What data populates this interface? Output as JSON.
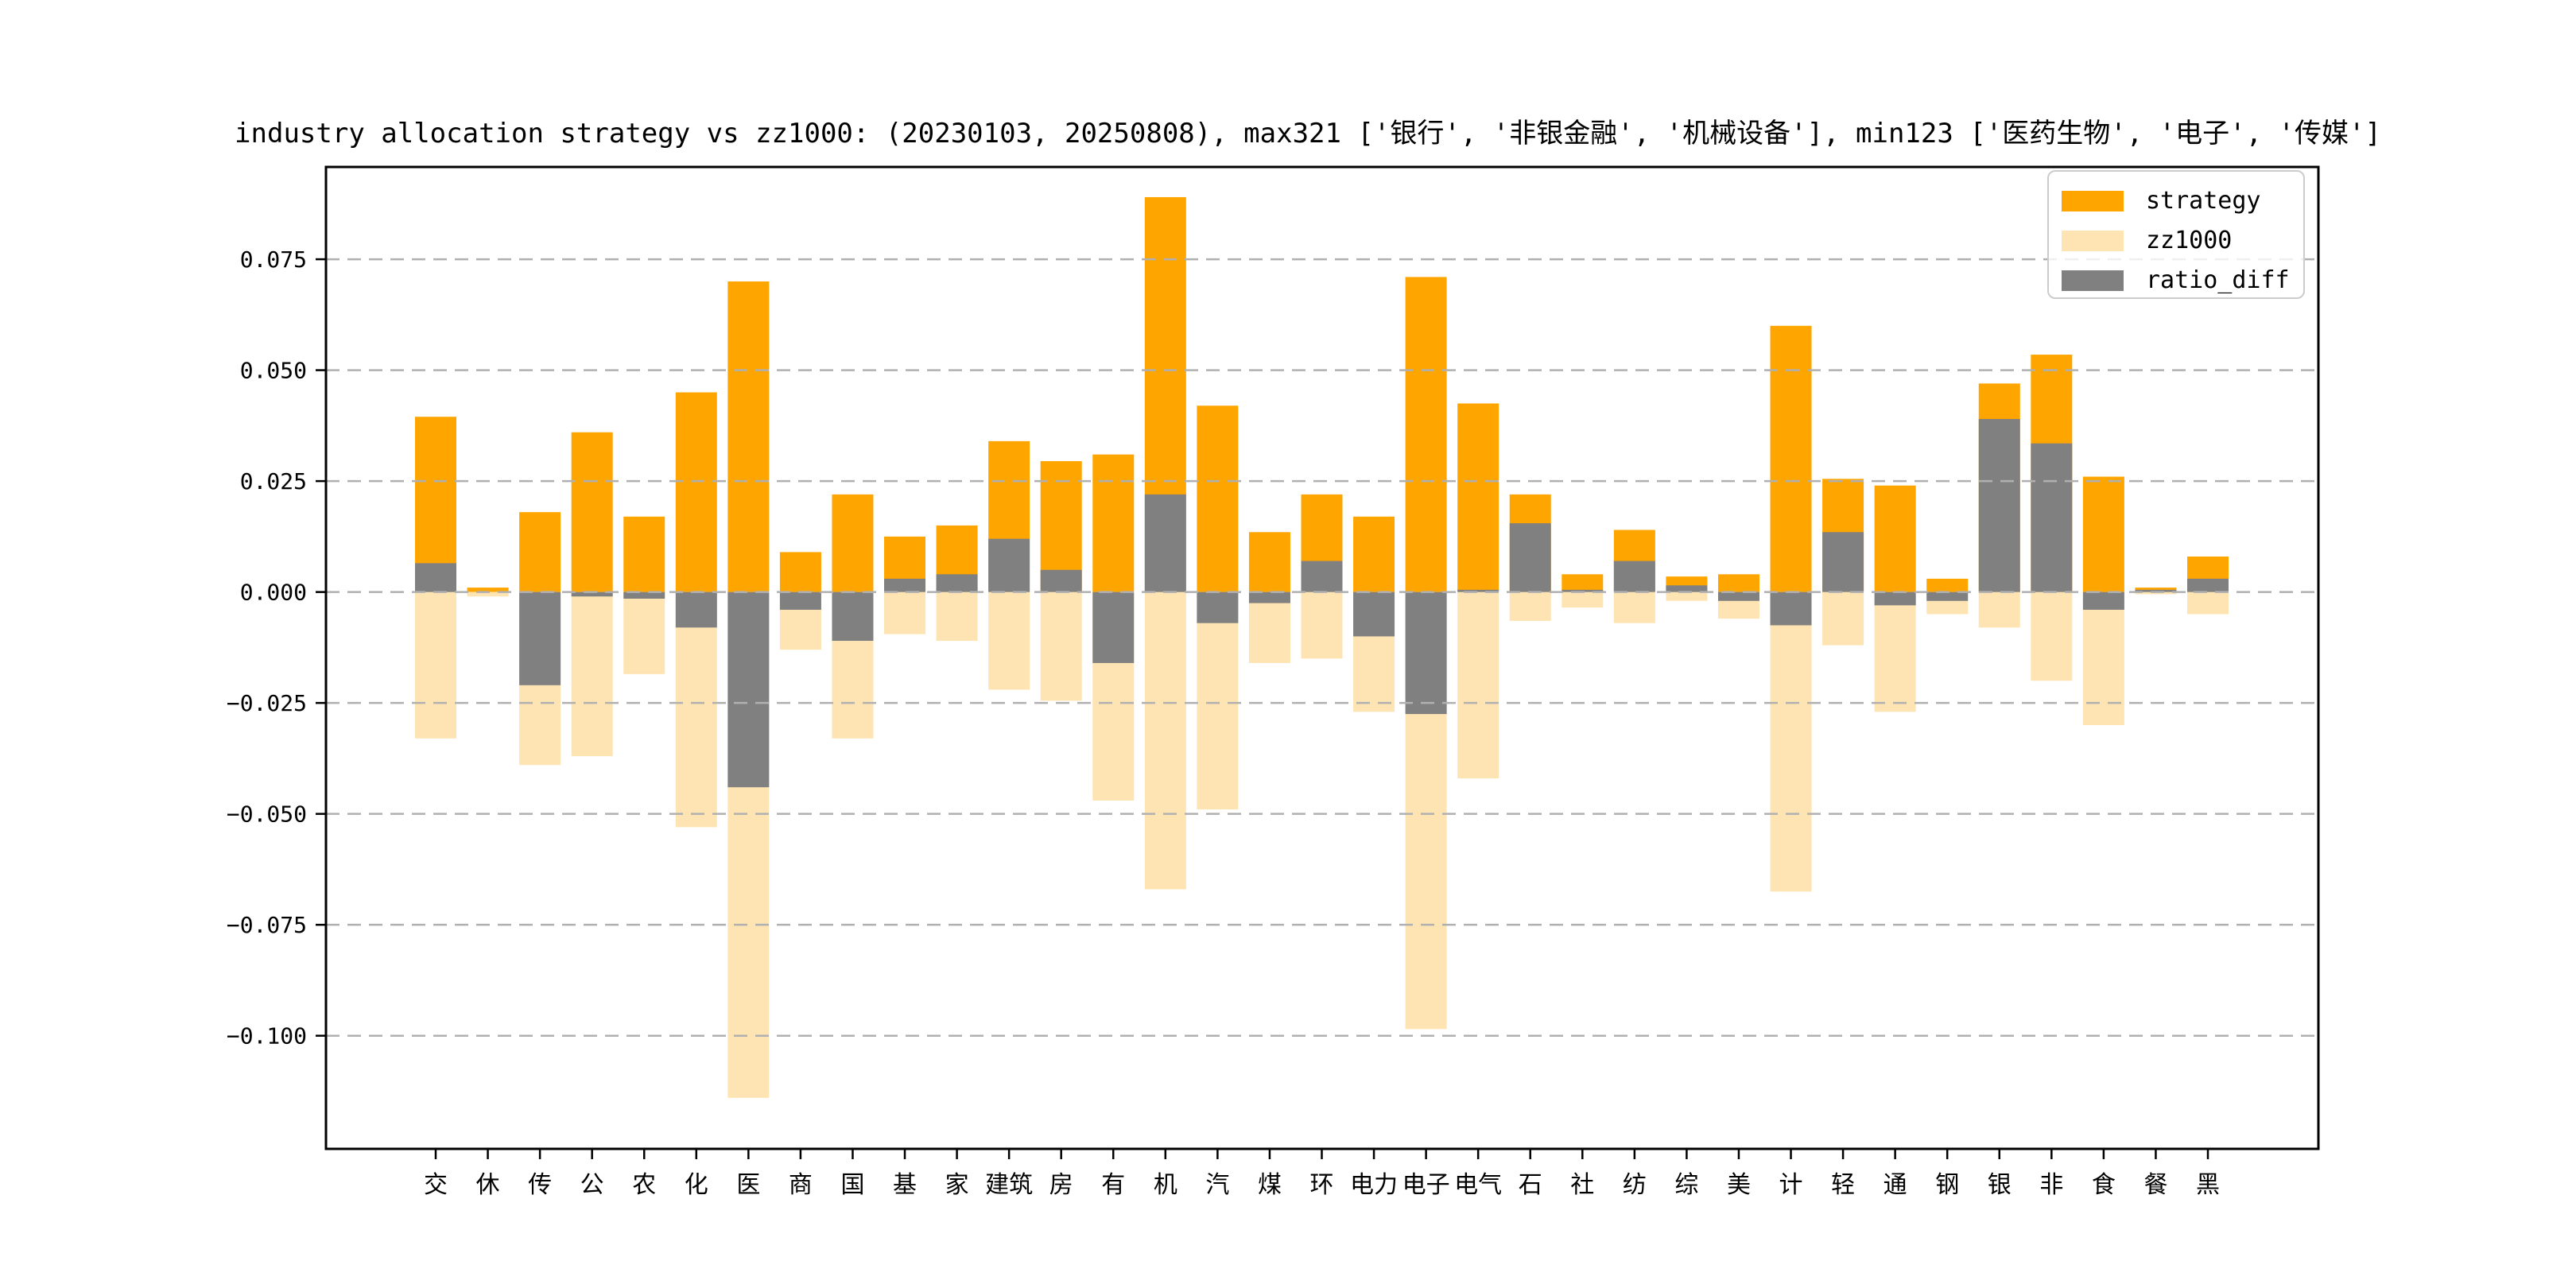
{
  "figure": {
    "background": "#ffffff",
    "plot_background": "#ffffff",
    "spine_color": "#000000",
    "gridline_color": "#b0b0b0"
  },
  "chart_data": {
    "type": "bar",
    "title": "industry allocation strategy vs zz1000: (20230103, 20250808), max321 ['银行', '非银金融', '机械设备'], min123 ['医药生物', '电子', '传媒']",
    "xlabel": "",
    "ylabel": "",
    "grid": "horizontal dashed",
    "legend_position": "upper right",
    "bar_rendering": "strategy drawn upward from 0; zz1000 drawn downward from 0 as -value; ratio_diff = strategy - zz1000 overlaid from 0 on top",
    "ylim": [
      -0.1255,
      0.0958
    ],
    "yticks": [
      0.075,
      0.05,
      0.025,
      0.0,
      -0.025,
      -0.05,
      -0.075,
      -0.1
    ],
    "ytick_labels": [
      "0.075",
      "0.050",
      "0.025",
      "0.000",
      "−0.025",
      "−0.050",
      "−0.075",
      "−0.100"
    ],
    "categories": [
      "交",
      "休",
      "传",
      "公",
      "农",
      "化",
      "医",
      "商",
      "国",
      "基",
      "家",
      "建筑",
      "房",
      "有",
      "机",
      "汽",
      "煤",
      "环",
      "电力",
      "电子",
      "电气",
      "石",
      "社",
      "纺",
      "综",
      "美",
      "计",
      "轻",
      "通",
      "钢",
      "银",
      "非",
      "食",
      "餐",
      "黑"
    ],
    "series": [
      {
        "name": "strategy",
        "color": "#FFA500",
        "values": [
          0.0395,
          0.001,
          0.018,
          0.036,
          0.017,
          0.045,
          0.07,
          0.009,
          0.022,
          0.0125,
          0.015,
          0.034,
          0.0295,
          0.031,
          0.089,
          0.042,
          0.0135,
          0.022,
          0.017,
          0.071,
          0.0425,
          0.022,
          0.004,
          0.014,
          0.0035,
          0.004,
          0.06,
          0.0255,
          0.024,
          0.003,
          0.047,
          0.0535,
          0.026,
          0.001,
          0.008
        ]
      },
      {
        "name": "zz1000",
        "color": "#FFE4B3",
        "values": [
          0.033,
          0.001,
          0.039,
          0.037,
          0.0185,
          0.053,
          0.114,
          0.013,
          0.033,
          0.0095,
          0.011,
          0.022,
          0.0245,
          0.047,
          0.067,
          0.049,
          0.016,
          0.015,
          0.027,
          0.0985,
          0.042,
          0.0065,
          0.0035,
          0.007,
          0.002,
          0.006,
          0.0675,
          0.012,
          0.027,
          0.005,
          0.008,
          0.02,
          0.03,
          0.0005,
          0.005
        ]
      },
      {
        "name": "ratio_diff",
        "color": "#808080",
        "values": [
          0.0065,
          0.0,
          -0.021,
          -0.001,
          -0.0015,
          -0.008,
          -0.044,
          -0.004,
          -0.011,
          0.003,
          0.004,
          0.012,
          0.005,
          -0.016,
          0.022,
          -0.007,
          -0.0025,
          0.007,
          -0.01,
          -0.0275,
          0.0005,
          0.0155,
          0.0005,
          0.007,
          0.0015,
          -0.002,
          -0.0075,
          0.0135,
          -0.003,
          -0.002,
          0.039,
          0.0335,
          -0.004,
          0.0005,
          0.003
        ]
      }
    ]
  },
  "legend": {
    "items": [
      {
        "label": "strategy",
        "color": "#FFA500"
      },
      {
        "label": "zz1000",
        "color": "#FFE4B3"
      },
      {
        "label": "ratio_diff",
        "color": "#808080"
      }
    ]
  }
}
